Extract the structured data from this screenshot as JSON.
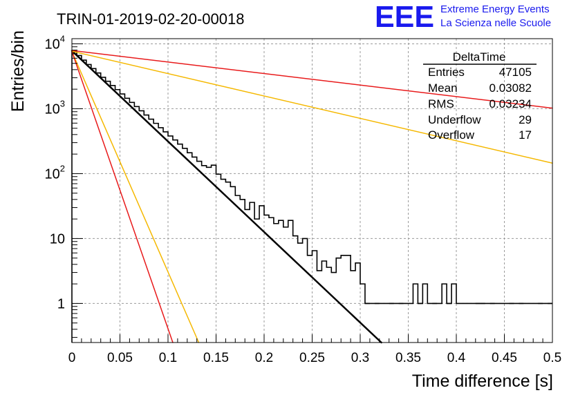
{
  "brand": {
    "logo": "EEE",
    "line1": "Extreme Energy Events",
    "line2": "La Scienza nelle Scuole",
    "color": "#1a1aee"
  },
  "chart_data": {
    "type": "histogram",
    "title": "TRIN-01-2019-02-20-00018",
    "xlabel": "Time difference [s]",
    "ylabel": "Entries/bin",
    "xlim": [
      0,
      0.5
    ],
    "ylim": [
      0.25,
      12000
    ],
    "yscale": "log",
    "grid": true,
    "x_ticks": [
      0,
      0.05,
      0.1,
      0.15,
      0.2,
      0.25,
      0.3,
      0.35,
      0.4,
      0.45,
      0.5
    ],
    "x_tick_labels": [
      "0",
      "0.05",
      "0.1",
      "0.15",
      "0.2",
      "0.25",
      "0.3",
      "0.35",
      "0.4",
      "0.45",
      "0.5"
    ],
    "y_ticks": [
      1,
      10,
      100,
      1000,
      10000
    ],
    "y_tick_labels": [
      {
        "base": "1",
        "exp": ""
      },
      {
        "base": "10",
        "exp": ""
      },
      {
        "base": "10",
        "exp": "2"
      },
      {
        "base": "10",
        "exp": "3"
      },
      {
        "base": "10",
        "exp": "4"
      }
    ],
    "bin_width": 0.005,
    "histogram": [
      7600,
      6600,
      5600,
      4800,
      4150,
      3550,
      3050,
      2650,
      2280,
      1970,
      1690,
      1450,
      1250,
      1080,
      930,
      800,
      690,
      595,
      510,
      440,
      380,
      330,
      285,
      245,
      210,
      180,
      155,
      133,
      125,
      135,
      98,
      82,
      74,
      63,
      46,
      40,
      28,
      36,
      20,
      32,
      23,
      21,
      17,
      19,
      15,
      19,
      11,
      8.5,
      10,
      5.5,
      6.5,
      3.2,
      4.5,
      3.6,
      3,
      5,
      5.5,
      5.5,
      3.2,
      4.2,
      2,
      1,
      1,
      1,
      1,
      1,
      1,
      1,
      1,
      1,
      1,
      2,
      1,
      2,
      1,
      1,
      1,
      2,
      1,
      2,
      1,
      1,
      1,
      1,
      1,
      1,
      1,
      1,
      1,
      1,
      1,
      1,
      1,
      1,
      1,
      1,
      1,
      1,
      1,
      1
    ],
    "histogram_low": [
      0,
      0,
      0,
      0,
      0,
      0,
      0,
      0,
      0,
      0,
      0,
      0,
      0,
      0,
      0,
      0,
      0,
      0,
      0,
      0,
      0,
      0,
      0,
      0,
      0,
      0,
      0,
      0,
      0,
      0,
      0,
      0,
      0,
      0,
      0,
      0,
      0,
      0,
      0,
      0,
      0,
      0,
      0,
      0,
      0,
      0,
      0,
      0,
      0,
      0,
      0,
      0,
      0,
      0,
      0,
      0,
      0,
      0,
      0,
      0,
      0,
      1,
      0,
      1,
      0,
      0,
      1,
      0,
      1,
      0,
      0,
      0,
      1,
      0,
      0,
      1,
      0,
      0,
      1,
      0,
      0,
      0,
      0,
      0,
      1,
      1,
      0,
      1,
      0,
      0,
      0,
      1,
      0,
      1,
      0,
      0,
      0,
      1,
      0,
      1
    ],
    "fits": [
      {
        "color": "#000000",
        "x": [
          0,
          0.322
        ],
        "y": [
          7800,
          0.25
        ],
        "width": 2.5
      },
      {
        "color": "#e8191a",
        "x": [
          0,
          0.5
        ],
        "y": [
          7900,
          1020
        ],
        "width": 1.5
      },
      {
        "color": "#f5b800",
        "x": [
          0,
          0.5
        ],
        "y": [
          7700,
          145
        ],
        "width": 1.5
      },
      {
        "color": "#f5b800",
        "x": [
          0,
          0.132
        ],
        "y": [
          7600,
          0.25
        ],
        "width": 1.5
      },
      {
        "color": "#e8191a",
        "x": [
          0,
          0.105
        ],
        "y": [
          7600,
          0.25
        ],
        "width": 1.5
      }
    ],
    "stats_box": {
      "title": "DeltaTime",
      "rows": [
        {
          "label": "Entries",
          "value": "47105"
        },
        {
          "label": "Mean",
          "value": "0.03082"
        },
        {
          "label": "RMS",
          "value": "0.03234"
        },
        {
          "label": "Underflow",
          "value": "29"
        },
        {
          "label": "Overflow",
          "value": "17"
        }
      ]
    }
  }
}
